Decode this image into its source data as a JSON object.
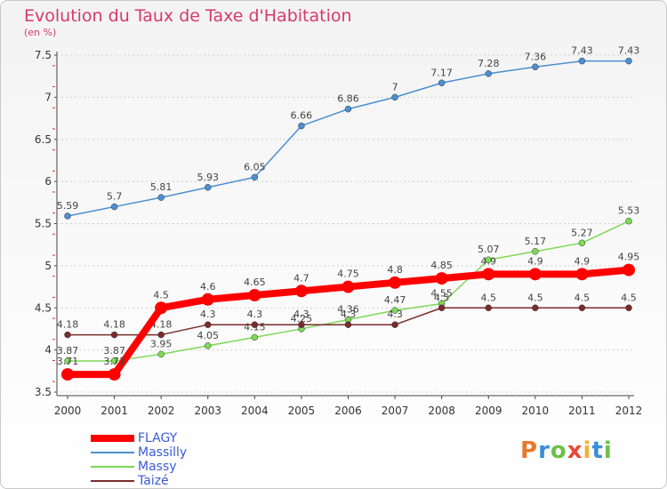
{
  "title": "Evolution du Taux de Taxe d'Habitation",
  "subtitle": "(en %)",
  "brand": "Proxiti",
  "chart_data": {
    "type": "line",
    "title": "Evolution du Taux de Taxe d'Habitation",
    "ylabel": "(en %)",
    "xlabel": "",
    "ylim": [
      3.5,
      7.5
    ],
    "yticks": [
      "3.5",
      "4",
      "4.5",
      "5",
      "5.5",
      "6",
      "6.5",
      "7",
      "7.5"
    ],
    "categories": [
      "2000",
      "2001",
      "2002",
      "2003",
      "2004",
      "2005",
      "2006",
      "2007",
      "2008",
      "2009",
      "2010",
      "2011",
      "2012"
    ],
    "grid": "horizontal dashed",
    "legend_position": "bottom-left",
    "series": [
      {
        "name": "FLAGY",
        "color": "#ff0000",
        "values": [
          3.71,
          3.71,
          4.5,
          4.6,
          4.65,
          4.7,
          4.75,
          4.8,
          4.85,
          4.9,
          4.9,
          4.9,
          4.95
        ],
        "labels": [
          "3.71",
          "3.71",
          "4.5",
          "4.6",
          "4.65",
          "4.7",
          "4.75",
          "4.8",
          "4.85",
          "4.9",
          "4.9",
          "4.9",
          "4.95"
        ]
      },
      {
        "name": "Massilly",
        "color": "#4b8fd1",
        "values": [
          5.59,
          5.7,
          5.81,
          5.93,
          6.05,
          6.66,
          6.86,
          7.0,
          7.17,
          7.28,
          7.36,
          7.43,
          7.43
        ],
        "labels": [
          "5.59",
          "5.7",
          "5.81",
          "5.93",
          "6.05",
          "6.66",
          "6.86",
          "7",
          "7.17",
          "7.28",
          "7.36",
          "7.43",
          "7.43"
        ]
      },
      {
        "name": "Massy",
        "color": "#7ed957",
        "values": [
          3.87,
          3.87,
          3.95,
          4.05,
          4.15,
          4.25,
          4.36,
          4.47,
          4.55,
          5.07,
          5.17,
          5.27,
          5.53
        ],
        "labels": [
          "3.87",
          "3.87",
          "3.95",
          "4.05",
          "4.15",
          "4.25",
          "4.36",
          "4.47",
          "4.55",
          "5.07",
          "5.17",
          "5.27",
          "5.53"
        ]
      },
      {
        "name": "Taizé",
        "color": "#7a2b2b",
        "values": [
          4.18,
          4.18,
          4.18,
          4.3,
          4.3,
          4.3,
          4.3,
          4.3,
          4.5,
          4.5,
          4.5,
          4.5,
          4.5
        ],
        "labels": [
          "4.18",
          "4.18",
          "4.18",
          "4.3",
          "4.3",
          "4.3",
          "4.3",
          "4.3",
          "4.5",
          "4.5",
          "4.5",
          "4.5",
          "4.5"
        ]
      }
    ]
  }
}
